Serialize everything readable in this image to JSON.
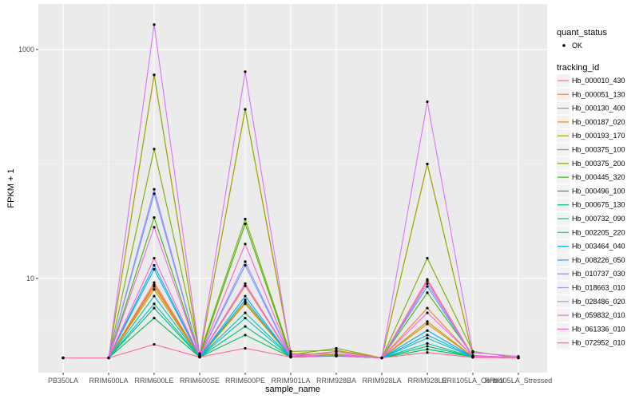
{
  "chart_data": {
    "type": "line",
    "xlabel": "sample_name",
    "ylabel": "FPKM + 1",
    "y_scale": "log10",
    "ylim": [
      1.5,
      2500
    ],
    "y_ticks": [
      {
        "value": 10,
        "label": "10"
      },
      {
        "value": 1000,
        "label": "1000"
      }
    ],
    "categories": [
      "PB350LA",
      "RRIM600LA",
      "RRIM600LE",
      "RRIM600SE",
      "RRIM600PE",
      "RRIM901LA",
      "RRIM928BA",
      "RRIM928LA",
      "RRIM928LE",
      "RRII105LA_Control",
      "RRII105LA_Stressed"
    ],
    "panel_background": "#ebebeb",
    "grid": true,
    "legend_position": "right",
    "shape_legend": {
      "title": "quant_status",
      "entries": [
        {
          "label": "OK"
        }
      ]
    },
    "color_legend_title": "tracking_id",
    "series": [
      {
        "name": "Hb_000010_430",
        "color": "#F8766D",
        "values": [
          2.02,
          2.02,
          9.2,
          2.08,
          9.0,
          2.1,
          2.13,
          2.02,
          9.8,
          2.08,
          2.02
        ]
      },
      {
        "name": "Hb_000051_130",
        "color": "#EE8043",
        "values": [
          2.02,
          2.02,
          8.8,
          2.07,
          8.6,
          2.08,
          2.12,
          2.02,
          5.5,
          2.07,
          2.02
        ]
      },
      {
        "name": "Hb_000130_400",
        "color": "#E08B00",
        "values": [
          2.02,
          2.02,
          8.5,
          2.06,
          6.2,
          2.06,
          2.1,
          2.02,
          4.2,
          2.06,
          2.02
        ]
      },
      {
        "name": "Hb_000187_020",
        "color": "#CE9700",
        "values": [
          2.02,
          2.02,
          8.0,
          2.05,
          6.0,
          2.06,
          2.09,
          2.02,
          4.0,
          2.06,
          2.02
        ]
      },
      {
        "name": "Hb_000193_170",
        "color": "#B8A000",
        "values": [
          2.02,
          2.02,
          600,
          2.1,
          300,
          2.2,
          2.15,
          2.02,
          100,
          2.1,
          2.02
        ]
      },
      {
        "name": "Hb_000375_100",
        "color": "#9EA700",
        "values": [
          2.02,
          2.02,
          600,
          2.1,
          300,
          2.3,
          2.35,
          2.02,
          100,
          2.1,
          2.02
        ]
      },
      {
        "name": "Hb_000375_200",
        "color": "#79AE00",
        "values": [
          2.02,
          2.02,
          135,
          2.2,
          33,
          2.15,
          2.45,
          2.02,
          15,
          2.3,
          2.02
        ]
      },
      {
        "name": "Hb_000445_320",
        "color": "#3DB600",
        "values": [
          2.02,
          2.02,
          34,
          2.1,
          30,
          2.08,
          2.3,
          2.02,
          7.5,
          2.12,
          2.02
        ]
      },
      {
        "name": "Hb_000496_100",
        "color": "#00BB46",
        "values": [
          2.02,
          2.02,
          4.5,
          2.05,
          3.2,
          2.05,
          2.1,
          2.02,
          2.4,
          2.06,
          2.02
        ]
      },
      {
        "name": "Hb_000675_130",
        "color": "#00BF7D",
        "values": [
          2.02,
          2.02,
          5.5,
          2.05,
          3.8,
          2.05,
          2.1,
          2.02,
          2.55,
          2.06,
          2.02
        ]
      },
      {
        "name": "Hb_000732_090",
        "color": "#00C1A7",
        "values": [
          2.02,
          2.02,
          6.0,
          2.05,
          4.5,
          2.05,
          2.1,
          2.02,
          2.7,
          2.06,
          2.02
        ]
      },
      {
        "name": "Hb_002205_220",
        "color": "#00BFC4",
        "values": [
          2.02,
          2.02,
          7.0,
          2.06,
          5.0,
          2.06,
          2.11,
          2.02,
          3.0,
          2.06,
          2.02
        ]
      },
      {
        "name": "Hb_003464_040",
        "color": "#00B8E7",
        "values": [
          2.02,
          2.02,
          12,
          2.06,
          6.5,
          2.06,
          2.11,
          2.02,
          3.2,
          2.06,
          2.02
        ]
      },
      {
        "name": "Hb_008226_050",
        "color": "#00ABFD",
        "values": [
          2.02,
          2.02,
          13,
          2.06,
          7.0,
          2.06,
          2.11,
          2.02,
          3.5,
          2.06,
          2.02
        ]
      },
      {
        "name": "Hb_010737_030",
        "color": "#619CFF",
        "values": [
          2.02,
          2.02,
          55,
          2.08,
          13,
          2.07,
          2.12,
          2.02,
          8.5,
          2.07,
          2.02
        ]
      },
      {
        "name": "Hb_018663_010",
        "color": "#A98BFF",
        "values": [
          2.02,
          2.02,
          60,
          2.08,
          14,
          2.07,
          2.12,
          2.02,
          9.0,
          2.07,
          2.02
        ]
      },
      {
        "name": "Hb_028486_020",
        "color": "#DB72FB",
        "values": [
          2.02,
          2.02,
          1650,
          2.15,
          640,
          2.15,
          2.2,
          2.02,
          350,
          2.25,
          2.08
        ]
      },
      {
        "name": "Hb_059832_010",
        "color": "#F365E6",
        "values": [
          2.02,
          2.02,
          28,
          2.08,
          9.0,
          2.07,
          2.12,
          2.02,
          5.0,
          2.1,
          2.05
        ]
      },
      {
        "name": "Hb_061336_010",
        "color": "#FF61C3",
        "values": [
          2.02,
          2.02,
          15,
          2.07,
          20,
          2.07,
          2.12,
          2.02,
          9.5,
          2.08,
          2.02
        ]
      },
      {
        "name": "Hb_072952_010",
        "color": "#FF6C91",
        "values": [
          2.02,
          2.02,
          2.65,
          2.05,
          2.45,
          2.05,
          2.3,
          2.02,
          2.25,
          2.04,
          2.02
        ]
      }
    ]
  }
}
